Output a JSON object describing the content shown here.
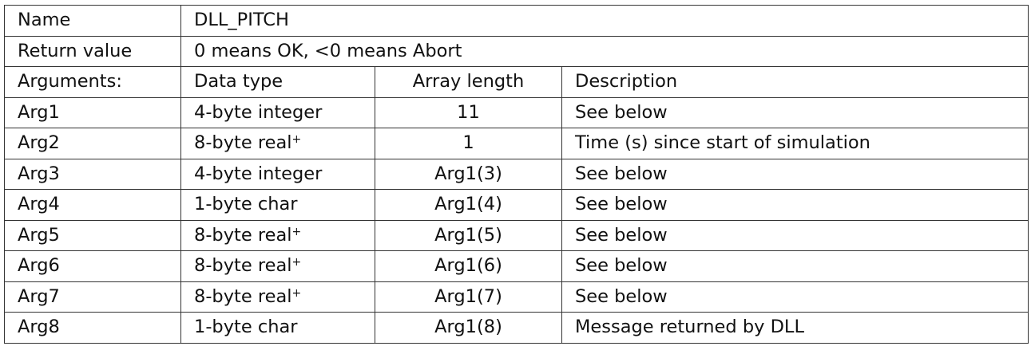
{
  "name_label": "Name",
  "name_value": "DLL_PITCH",
  "return_label": "Return value",
  "return_value": "0 means OK, <0 means Abort",
  "headers": [
    "Arguments:",
    "Data type",
    "Array length",
    "Description"
  ],
  "rows": [
    {
      "arg": "Arg1",
      "type": "4-byte integer",
      "sup": "",
      "length": "11",
      "desc": "See below"
    },
    {
      "arg": "Arg2",
      "type": "8-byte real",
      "sup": "+",
      "length": "1",
      "desc": "Time (s) since start of simulation"
    },
    {
      "arg": "Arg3",
      "type": "4-byte integer",
      "sup": "",
      "length": "Arg1(3)",
      "desc": "See below"
    },
    {
      "arg": "Arg4",
      "type": "1-byte char",
      "sup": "",
      "length": "Arg1(4)",
      "desc": "See below"
    },
    {
      "arg": "Arg5",
      "type": "8-byte real",
      "sup": "+",
      "length": "Arg1(5)",
      "desc": "See below"
    },
    {
      "arg": "Arg6",
      "type": "8-byte real",
      "sup": "+",
      "length": "Arg1(6)",
      "desc": "See below"
    },
    {
      "arg": "Arg7",
      "type": "8-byte real",
      "sup": "+",
      "length": "Arg1(7)",
      "desc": "See below"
    },
    {
      "arg": "Arg8",
      "type": "1-byte char",
      "sup": "",
      "length": "Arg1(8)",
      "desc": "Message returned by DLL"
    }
  ]
}
